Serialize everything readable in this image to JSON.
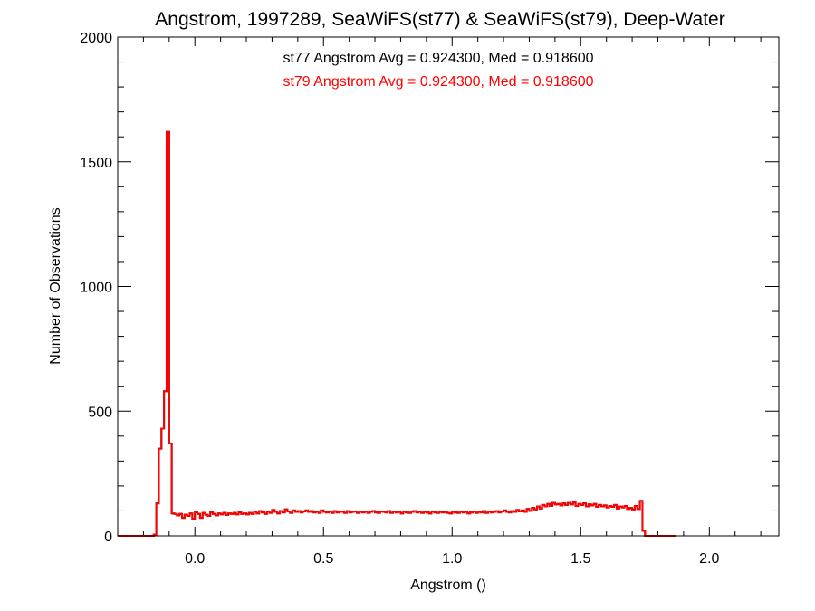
{
  "chart_data": {
    "type": "line",
    "style": "step-histogram",
    "title": "Angstrom, 1997289, SeaWiFS(st77) & SeaWiFS(st79), Deep-Water",
    "xlabel": "Angstrom ()",
    "ylabel": "Number of Observations",
    "xlim": [
      -0.3,
      2.27
    ],
    "ylim": [
      0,
      2000
    ],
    "xticks": [
      0.0,
      0.5,
      1.0,
      1.5,
      2.0
    ],
    "xtick_labels": [
      "0.0",
      "0.5",
      "1.0",
      "1.5",
      "2.0"
    ],
    "yticks": [
      0,
      500,
      1000,
      1500,
      2000
    ],
    "ytick_labels": [
      "0",
      "500",
      "1000",
      "1500",
      "2000"
    ],
    "grid": false,
    "annotations": [
      {
        "text": "st77 Angstrom Avg = 0.924300, Med = 0.918600",
        "color": "#000000"
      },
      {
        "text": "st79 Angstrom Avg = 0.924300, Med = 0.918600",
        "color": "#ff0000"
      }
    ],
    "bin_width": 0.01,
    "bin_start": -0.3,
    "series": [
      {
        "name": "st77",
        "color": "#000000",
        "values": [
          0,
          0,
          0,
          0,
          0,
          0,
          0,
          0,
          0,
          0,
          0,
          0,
          0,
          0,
          5,
          130,
          350,
          430,
          580,
          1620,
          370,
          90,
          88,
          82,
          88,
          72,
          85,
          80,
          90,
          68,
          95,
          88,
          72,
          92,
          85,
          80,
          95,
          88,
          82,
          90,
          86,
          92,
          84,
          90,
          88,
          92,
          86,
          94,
          88,
          90,
          86,
          92,
          88,
          96,
          90,
          100,
          94,
          88,
          98,
          92,
          104,
          96,
          90,
          100,
          94,
          106,
          98,
          92,
          102,
          96,
          100,
          94,
          98,
          102,
          96,
          100,
          94,
          98,
          92,
          102,
          96,
          94,
          98,
          92,
          100,
          94,
          98,
          96,
          92,
          100,
          94,
          96,
          98,
          92,
          96,
          94,
          98,
          92,
          96,
          100,
          94,
          92,
          98,
          96,
          94,
          100,
          92,
          98,
          94,
          96,
          90,
          98,
          94,
          92,
          96,
          100,
          94,
          98,
          92,
          96,
          94,
          90,
          98,
          94,
          92,
          96,
          94,
          98,
          92,
          90,
          96,
          94,
          92,
          98,
          94,
          96,
          90,
          94,
          98,
          92,
          96,
          94,
          100,
          92,
          98,
          94,
          96,
          100,
          94,
          98,
          102,
          96,
          94,
          100,
          96,
          104,
          98,
          102,
          96,
          108,
          100,
          112,
          106,
          118,
          110,
          124,
          118,
          128,
          120,
          132,
          126,
          128,
          122,
          130,
          124,
          132,
          126,
          134,
          120,
          128,
          124,
          130,
          118,
          126,
          122,
          128,
          116,
          124,
          118,
          122,
          114,
          120,
          116,
          124,
          110,
          118,
          114,
          120,
          108,
          112,
          106,
          120,
          108,
          140,
          20,
          0,
          0,
          0,
          0,
          0,
          0,
          0,
          0,
          0,
          0,
          0,
          0
        ]
      },
      {
        "name": "st79",
        "color": "#ff0000",
        "values": [
          0,
          0,
          0,
          0,
          0,
          0,
          0,
          0,
          0,
          0,
          0,
          0,
          0,
          0,
          5,
          130,
          350,
          430,
          580,
          1620,
          370,
          90,
          88,
          82,
          88,
          72,
          85,
          80,
          90,
          68,
          95,
          88,
          72,
          92,
          85,
          80,
          95,
          88,
          82,
          90,
          86,
          92,
          84,
          90,
          88,
          92,
          86,
          94,
          88,
          90,
          86,
          92,
          88,
          96,
          90,
          100,
          94,
          88,
          98,
          92,
          104,
          96,
          90,
          100,
          94,
          106,
          98,
          92,
          102,
          96,
          100,
          94,
          98,
          102,
          96,
          100,
          94,
          98,
          92,
          102,
          96,
          94,
          98,
          92,
          100,
          94,
          98,
          96,
          92,
          100,
          94,
          96,
          98,
          92,
          96,
          94,
          98,
          92,
          96,
          100,
          94,
          92,
          98,
          96,
          94,
          100,
          92,
          98,
          94,
          96,
          90,
          98,
          94,
          92,
          96,
          100,
          94,
          98,
          92,
          96,
          94,
          90,
          98,
          94,
          92,
          96,
          94,
          98,
          92,
          90,
          96,
          94,
          92,
          98,
          94,
          96,
          90,
          94,
          98,
          92,
          96,
          94,
          100,
          92,
          98,
          94,
          96,
          100,
          94,
          98,
          102,
          96,
          94,
          100,
          96,
          104,
          98,
          102,
          96,
          108,
          100,
          112,
          106,
          118,
          110,
          124,
          118,
          128,
          120,
          132,
          126,
          128,
          122,
          130,
          124,
          132,
          126,
          134,
          120,
          128,
          124,
          130,
          118,
          126,
          122,
          128,
          116,
          124,
          118,
          122,
          114,
          120,
          116,
          124,
          110,
          118,
          114,
          120,
          108,
          112,
          106,
          120,
          108,
          140,
          20,
          0,
          0,
          0,
          0,
          0,
          0,
          0,
          0,
          0,
          0,
          0,
          0
        ]
      }
    ]
  }
}
